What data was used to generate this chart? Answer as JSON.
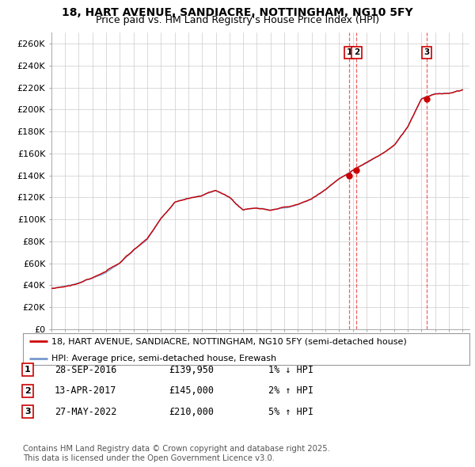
{
  "title": "18, HART AVENUE, SANDIACRE, NOTTINGHAM, NG10 5FY",
  "subtitle": "Price paid vs. HM Land Registry's House Price Index (HPI)",
  "ylim": [
    0,
    270000
  ],
  "yticks": [
    0,
    20000,
    40000,
    60000,
    80000,
    100000,
    120000,
    140000,
    160000,
    180000,
    200000,
    220000,
    240000,
    260000
  ],
  "ytick_labels": [
    "£0",
    "£20K",
    "£40K",
    "£60K",
    "£80K",
    "£100K",
    "£120K",
    "£140K",
    "£160K",
    "£180K",
    "£200K",
    "£220K",
    "£240K",
    "£260K"
  ],
  "xlim_start": 1995.0,
  "xlim_end": 2025.5,
  "hpi_color": "#7799cc",
  "hpi_fill_color": "#ccddf5",
  "price_color": "#cc0000",
  "sale_line_color": "#ee4444",
  "background_color": "#ffffff",
  "plot_bg_color": "#ffffff",
  "grid_color": "#cccccc",
  "sales": [
    {
      "date_num": 2016.745,
      "price": 139950,
      "label": "1",
      "date_str": "28-SEP-2016",
      "pct": "1%",
      "dir": "↓"
    },
    {
      "date_num": 2017.28,
      "price": 145000,
      "label": "2",
      "date_str": "13-APR-2017",
      "pct": "2%",
      "dir": "↑"
    },
    {
      "date_num": 2022.4,
      "price": 210000,
      "label": "3",
      "date_str": "27-MAY-2022",
      "pct": "5%",
      "dir": "↑"
    }
  ],
  "legend_price_label": "18, HART AVENUE, SANDIACRE, NOTTINGHAM, NG10 5FY (semi-detached house)",
  "legend_hpi_label": "HPI: Average price, semi-detached house, Erewash",
  "footer": "Contains HM Land Registry data © Crown copyright and database right 2025.\nThis data is licensed under the Open Government Licence v3.0.",
  "title_fontsize": 10,
  "subtitle_fontsize": 9,
  "tick_fontsize": 8,
  "legend_fontsize": 8,
  "table_fontsize": 8.5
}
